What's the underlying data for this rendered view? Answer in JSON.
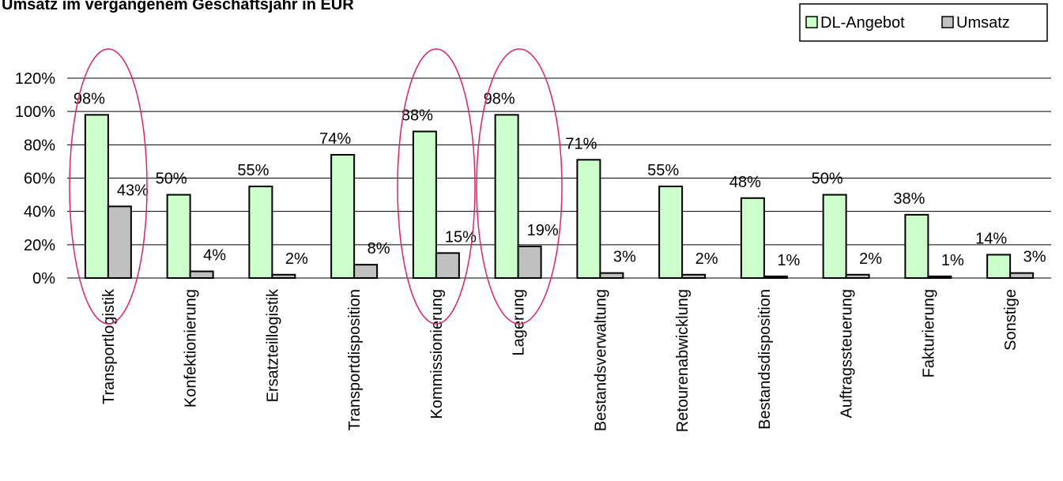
{
  "chart_data": {
    "type": "bar",
    "title": "Umsatz im vergangenem Geschäftsjahr in EUR",
    "categories": [
      "Transportlogistik",
      "Konfektionierung",
      "Ersatzteillogistik",
      "Transportdisposition",
      "Kommissionierung",
      "Lagerung",
      "Bestandsverwaltung",
      "Retourenabwicklung",
      "Bestandsdisposition",
      "Auftragssteuerung",
      "Fakturierung",
      "Sonstige"
    ],
    "series": [
      {
        "name": "DL-Angebot",
        "color": "#ccffcc",
        "values": [
          98,
          50,
          55,
          74,
          88,
          98,
          71,
          55,
          48,
          50,
          38,
          14
        ],
        "value_labels": [
          "98%",
          "50%",
          "55%",
          "74%",
          "88%",
          "98%",
          "71%",
          "55%",
          "48%",
          "50%",
          "38%",
          "14%"
        ]
      },
      {
        "name": "Umsatz",
        "color": "#c0c0c0",
        "values": [
          43,
          4,
          2,
          8,
          15,
          19,
          3,
          2,
          1,
          2,
          1,
          3
        ],
        "value_labels": [
          "43%",
          "4%",
          "2%",
          "8%",
          "15%",
          "19%",
          "3%",
          "2%",
          "1%",
          "2%",
          "1%",
          "3%"
        ]
      }
    ],
    "ylim": [
      0,
      120
    ],
    "yticks": [
      {
        "value": 0,
        "label": "0%"
      },
      {
        "value": 20,
        "label": "20%"
      },
      {
        "value": 40,
        "label": "40%"
      },
      {
        "value": 60,
        "label": "60%"
      },
      {
        "value": 80,
        "label": "80%"
      },
      {
        "value": 100,
        "label": "100%"
      },
      {
        "value": 120,
        "label": "120%"
      }
    ],
    "grid": true,
    "legend": "top-right"
  }
}
